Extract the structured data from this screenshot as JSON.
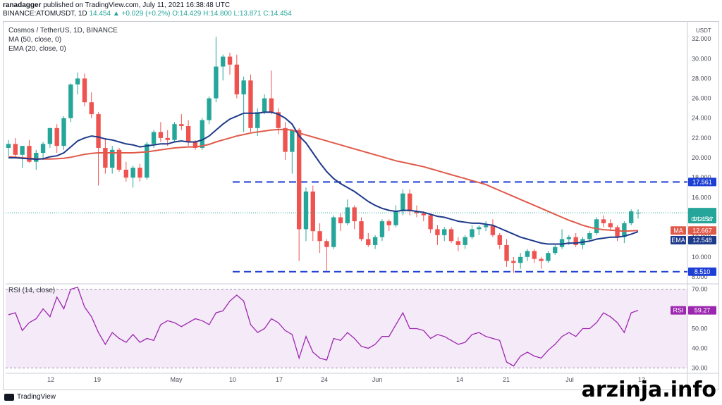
{
  "header": {
    "author": "ranadagger",
    "published_text": "published on TradingView.com, July 11, 2021 16:38:48 UTC",
    "symbol": "BINANCE:ATOMUSDT, 1D",
    "last": "14.454",
    "change": "+0.029 (+0.2%)",
    "ohlc": "O:14.429 H:14.800 L:13.871 C:14.454"
  },
  "legend": {
    "title": "Cosmos / TetherUS, 1D, BINANCE",
    "ma": "MA (50, close, 0)",
    "ema": "EMA (20, close, 0)",
    "rsi": "RSI (14, close)"
  },
  "axis": {
    "currency": "USDT",
    "price_ticks": [
      "32.000",
      "30.000",
      "28.000",
      "26.000",
      "24.000",
      "22.000",
      "20.000",
      "18.000",
      "16.000",
      "14.000",
      "12.000",
      "10.000",
      "8.000"
    ],
    "rsi_ticks": [
      "70.00",
      "60.00",
      "50.00",
      "40.00",
      "30.00"
    ],
    "x_ticks": [
      "12",
      "19",
      "May",
      "10",
      "17",
      "24",
      "Jun",
      "14",
      "21",
      "Jul",
      "12"
    ]
  },
  "tags": {
    "resistance": "17.561",
    "support": "8.510",
    "price": "14.454",
    "countdown": "07:21:17",
    "ma_label": "MA",
    "ma_value": "12.667",
    "ema_label": "EMA",
    "ema_value": "12.548",
    "rsi_label": "RSI",
    "rsi_value": "59.27"
  },
  "colors": {
    "up": "#26a69a",
    "down": "#ef5350",
    "ma": "#e05a4a",
    "ema": "#1e3a8a",
    "rsi": "#9c27b0",
    "level": "#1e3fd4"
  },
  "footer": {
    "brand": "TradingView"
  },
  "watermark": "arzinja.info",
  "chart_data": {
    "type": "candlestick",
    "title": "Cosmos / TetherUS, 1D, BINANCE",
    "ylim": [
      7.5,
      33.5
    ],
    "levels": [
      17.561,
      8.51
    ],
    "candles_ohlc": [
      [
        21.0,
        21.8,
        20.2,
        21.4
      ],
      [
        21.4,
        22.0,
        20.0,
        20.3
      ],
      [
        20.3,
        21.2,
        19.0,
        21.2
      ],
      [
        21.2,
        21.8,
        19.5,
        19.6
      ],
      [
        19.6,
        20.8,
        18.8,
        20.5
      ],
      [
        20.5,
        21.6,
        19.8,
        21.4
      ],
      [
        21.4,
        23.0,
        21.0,
        23.0
      ],
      [
        23.0,
        23.4,
        20.5,
        21.2
      ],
      [
        21.2,
        24.2,
        20.8,
        24.0
      ],
      [
        24.0,
        27.5,
        23.6,
        27.4
      ],
      [
        27.4,
        28.6,
        26.4,
        28.0
      ],
      [
        28.0,
        28.5,
        25.2,
        25.6
      ],
      [
        25.6,
        26.6,
        24.0,
        24.4
      ],
      [
        24.4,
        24.6,
        17.2,
        21.0
      ],
      [
        21.0,
        22.0,
        18.4,
        19.0
      ],
      [
        19.0,
        21.2,
        18.4,
        20.8
      ],
      [
        20.8,
        21.0,
        18.6,
        18.8
      ],
      [
        18.8,
        19.6,
        17.6,
        18.0
      ],
      [
        18.0,
        19.2,
        17.0,
        19.0
      ],
      [
        19.0,
        19.4,
        17.6,
        18.0
      ],
      [
        18.0,
        21.6,
        17.8,
        21.4
      ],
      [
        21.4,
        22.8,
        21.0,
        22.6
      ],
      [
        22.6,
        23.6,
        21.6,
        22.0
      ],
      [
        22.0,
        22.8,
        21.2,
        21.8
      ],
      [
        21.8,
        23.6,
        21.6,
        23.4
      ],
      [
        23.4,
        24.4,
        22.8,
        23.2
      ],
      [
        23.2,
        23.8,
        21.2,
        21.6
      ],
      [
        21.6,
        21.8,
        20.8,
        21.0
      ],
      [
        21.0,
        24.0,
        20.8,
        23.8
      ],
      [
        23.8,
        26.2,
        23.4,
        26.0
      ],
      [
        26.0,
        32.2,
        25.6,
        29.2
      ],
      [
        29.2,
        30.4,
        27.8,
        30.2
      ],
      [
        30.2,
        30.6,
        28.4,
        29.4
      ],
      [
        29.4,
        30.4,
        26.0,
        26.4
      ],
      [
        26.4,
        28.2,
        22.6,
        27.8
      ],
      [
        27.8,
        28.4,
        22.6,
        23.0
      ],
      [
        23.0,
        25.0,
        22.2,
        24.6
      ],
      [
        24.6,
        26.4,
        24.4,
        26.0
      ],
      [
        26.0,
        28.8,
        24.4,
        24.6
      ],
      [
        24.6,
        25.0,
        22.4,
        23.0
      ],
      [
        23.0,
        23.6,
        19.8,
        20.6
      ],
      [
        20.6,
        21.8,
        18.4,
        22.8
      ],
      [
        22.8,
        23.0,
        9.6,
        12.8
      ],
      [
        12.8,
        17.0,
        11.6,
        16.6
      ],
      [
        16.6,
        17.2,
        11.6,
        12.6
      ],
      [
        12.6,
        13.4,
        10.4,
        11.6
      ],
      [
        11.6,
        11.8,
        8.6,
        11.0
      ],
      [
        11.0,
        14.2,
        10.8,
        14.0
      ],
      [
        14.0,
        14.4,
        12.6,
        13.4
      ],
      [
        13.4,
        15.8,
        13.2,
        15.0
      ],
      [
        15.0,
        15.2,
        12.8,
        13.6
      ],
      [
        13.6,
        14.0,
        11.6,
        11.8
      ],
      [
        11.8,
        12.4,
        11.0,
        11.2
      ],
      [
        11.2,
        12.2,
        10.8,
        12.0
      ],
      [
        12.0,
        13.8,
        11.6,
        13.6
      ],
      [
        13.6,
        13.8,
        12.6,
        13.2
      ],
      [
        13.2,
        15.2,
        13.0,
        14.6
      ],
      [
        14.6,
        16.8,
        14.2,
        16.4
      ],
      [
        16.4,
        16.8,
        14.2,
        14.6
      ],
      [
        14.6,
        15.2,
        14.0,
        14.4
      ],
      [
        14.4,
        14.6,
        13.6,
        14.2
      ],
      [
        14.2,
        14.4,
        12.4,
        12.8
      ],
      [
        12.8,
        13.2,
        11.2,
        12.2
      ],
      [
        12.2,
        13.0,
        11.6,
        12.8
      ],
      [
        12.8,
        13.0,
        11.4,
        11.6
      ],
      [
        11.6,
        12.0,
        10.6,
        11.2
      ],
      [
        11.2,
        12.2,
        10.8,
        12.0
      ],
      [
        12.0,
        13.2,
        11.8,
        12.8
      ],
      [
        12.8,
        13.2,
        12.2,
        13.0
      ],
      [
        13.0,
        13.6,
        12.6,
        13.2
      ],
      [
        13.2,
        13.8,
        12.0,
        12.2
      ],
      [
        12.2,
        12.4,
        10.8,
        11.2
      ],
      [
        11.2,
        11.8,
        9.0,
        9.6
      ],
      [
        9.6,
        10.0,
        8.4,
        9.4
      ],
      [
        9.4,
        10.4,
        8.8,
        10.0
      ],
      [
        10.0,
        10.8,
        9.6,
        10.6
      ],
      [
        10.6,
        10.8,
        9.4,
        9.8
      ],
      [
        9.8,
        10.0,
        8.8,
        9.6
      ],
      [
        9.6,
        10.6,
        9.4,
        10.4
      ],
      [
        10.4,
        11.2,
        10.2,
        11.0
      ],
      [
        11.0,
        12.8,
        10.8,
        11.8
      ],
      [
        11.8,
        12.2,
        11.2,
        12.0
      ],
      [
        12.0,
        12.4,
        11.0,
        11.2
      ],
      [
        11.2,
        12.0,
        10.8,
        11.8
      ],
      [
        11.8,
        12.6,
        11.6,
        12.4
      ],
      [
        12.4,
        14.0,
        12.2,
        13.8
      ],
      [
        13.8,
        14.2,
        13.0,
        13.4
      ],
      [
        13.4,
        13.8,
        12.6,
        13.0
      ],
      [
        13.0,
        13.2,
        11.6,
        12.0
      ],
      [
        12.0,
        13.6,
        11.4,
        13.4
      ],
      [
        13.4,
        14.8,
        13.2,
        14.6
      ],
      [
        14.429,
        14.8,
        13.871,
        14.454
      ]
    ],
    "ma50": [
      20.1,
      20.05,
      20.0,
      19.95,
      19.9,
      19.88,
      19.88,
      19.9,
      19.95,
      20.05,
      20.2,
      20.35,
      20.45,
      20.5,
      20.5,
      20.5,
      20.5,
      20.5,
      20.5,
      20.55,
      20.6,
      20.7,
      20.8,
      20.9,
      21.0,
      21.05,
      21.1,
      21.1,
      21.2,
      21.35,
      21.6,
      21.8,
      22.0,
      22.2,
      22.35,
      22.5,
      22.6,
      22.7,
      22.8,
      22.85,
      22.85,
      22.8,
      22.5,
      22.3,
      22.1,
      21.9,
      21.7,
      21.5,
      21.3,
      21.1,
      20.9,
      20.7,
      20.5,
      20.3,
      20.1,
      19.9,
      19.7,
      19.55,
      19.4,
      19.25,
      19.1,
      18.9,
      18.7,
      18.5,
      18.3,
      18.1,
      17.9,
      17.7,
      17.5,
      17.3,
      17.0,
      16.7,
      16.4,
      16.1,
      15.8,
      15.5,
      15.2,
      14.9,
      14.6,
      14.3,
      14.0,
      13.7,
      13.45,
      13.2,
      13.0,
      12.85,
      12.75,
      12.7,
      12.65,
      12.6,
      12.63,
      12.667
    ],
    "ema20": [
      20.0,
      20.0,
      19.95,
      19.9,
      19.85,
      19.9,
      20.1,
      20.2,
      20.5,
      21.1,
      21.7,
      22.0,
      22.2,
      22.1,
      21.9,
      21.8,
      21.6,
      21.4,
      21.3,
      21.1,
      21.2,
      21.3,
      21.4,
      21.4,
      21.6,
      21.7,
      21.6,
      21.6,
      21.8,
      22.2,
      22.8,
      23.4,
      23.9,
      24.2,
      24.5,
      24.5,
      24.5,
      24.6,
      24.6,
      24.4,
      24.0,
      23.4,
      22.2,
      21.5,
      20.5,
      19.5,
      18.6,
      17.9,
      17.4,
      17.0,
      16.6,
      16.1,
      15.6,
      15.2,
      14.9,
      14.7,
      14.6,
      14.7,
      14.7,
      14.6,
      14.5,
      14.3,
      14.1,
      14.0,
      13.8,
      13.6,
      13.5,
      13.4,
      13.4,
      13.3,
      13.2,
      12.9,
      12.6,
      12.3,
      12.0,
      11.8,
      11.6,
      11.4,
      11.3,
      11.3,
      11.3,
      11.4,
      11.4,
      11.5,
      11.6,
      11.8,
      11.9,
      12.0,
      12.0,
      12.1,
      12.3,
      12.548
    ],
    "rsi": [
      57,
      58,
      49,
      53,
      55,
      60,
      56,
      66,
      60,
      70,
      71,
      61,
      56,
      48,
      42,
      48,
      45,
      43,
      47,
      43,
      45,
      44,
      52,
      54,
      53,
      51,
      53,
      55,
      54,
      52,
      58,
      59,
      64,
      67,
      64,
      52,
      48,
      50,
      55,
      53,
      49,
      47,
      35,
      46,
      38,
      35,
      34,
      45,
      44,
      48,
      45,
      41,
      40,
      42,
      46,
      46,
      52,
      58,
      50,
      50,
      49,
      45,
      47,
      46,
      44,
      42,
      43,
      47,
      48,
      46,
      45,
      44,
      33,
      31,
      36,
      38,
      36,
      35,
      39,
      42,
      46,
      48,
      46,
      50,
      50,
      53,
      58,
      56,
      53,
      48,
      58,
      59.27
    ],
    "rsi_ylim": [
      28,
      72
    ],
    "x_ticks": [
      "12",
      "19",
      "May",
      "10",
      "17",
      "24",
      "Jun",
      "14",
      "21",
      "Jul",
      "12"
    ]
  }
}
